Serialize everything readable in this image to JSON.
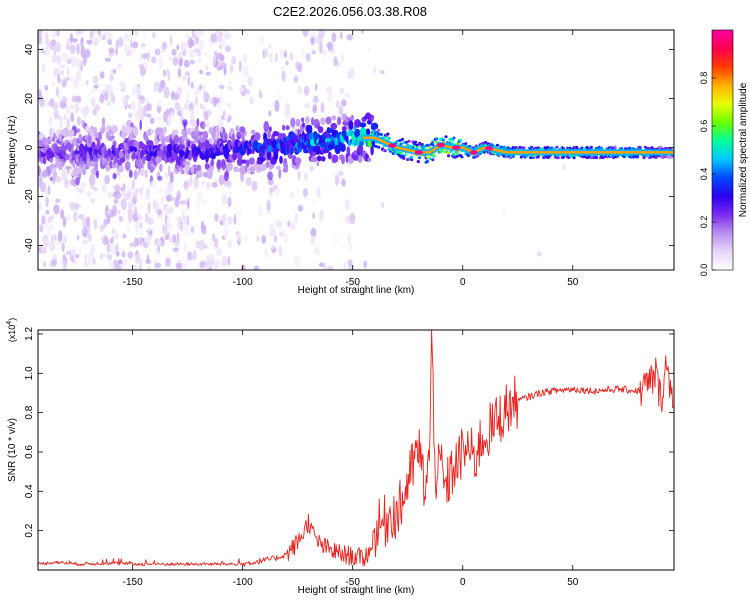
{
  "title": "C2E2.2026.056.03.38.R08",
  "colors": {
    "snr_line": "#e8221c",
    "axis": "#000000",
    "colormap": [
      "#ffffff",
      "#e6d6f7",
      "#b98ff0",
      "#7a2cf0",
      "#2a00f0",
      "#0048ff",
      "#00c8ff",
      "#00ff9a",
      "#6cff00",
      "#e8ff00",
      "#ffb000",
      "#ff3c00",
      "#ff0050",
      "#ff00a0"
    ]
  },
  "chart_data": [
    {
      "type": "heatmap",
      "title": "C2E2.2026.056.03.38.R08",
      "xlabel": "Height of straight line (km)",
      "ylabel": "Frequency (Hz)",
      "xlim": [
        -193,
        96
      ],
      "ylim": [
        -50,
        48
      ],
      "xticks": [
        -150,
        -100,
        -50,
        0,
        50
      ],
      "yticks": [
        -40,
        -20,
        0,
        20,
        40
      ],
      "colorbar": {
        "label": "Normalized spectral amplitude",
        "range": [
          0.0,
          1.0
        ],
        "ticks": [
          "0.0",
          "0.2",
          "0.4",
          "0.6",
          "0.8"
        ],
        "tick_values": [
          0.0,
          0.2,
          0.4,
          0.6,
          0.8
        ]
      },
      "ridge": {
        "x": [
          -193,
          -160,
          -140,
          -105,
          -80,
          -60,
          -50,
          -45,
          -40,
          -30,
          -20,
          -15,
          -10,
          -5,
          0,
          5,
          10,
          20,
          40,
          60,
          80,
          96
        ],
        "center_hz": [
          -3,
          -1,
          -2,
          -1,
          1,
          3,
          4,
          4,
          4,
          0,
          -2,
          -2,
          1,
          0,
          0,
          -2,
          0,
          -2,
          -2,
          -2,
          -2,
          -2
        ],
        "peak_amplitude": [
          0.25,
          0.3,
          0.3,
          0.35,
          0.45,
          0.5,
          0.55,
          0.6,
          0.65,
          0.8,
          0.85,
          0.9,
          0.95,
          0.97,
          0.95,
          0.9,
          0.9,
          0.85,
          0.8,
          0.8,
          0.75,
          0.4
        ]
      }
    },
    {
      "type": "line",
      "xlabel": "Height of straight line (km)",
      "ylabel": "SNR (10 * v/v)",
      "y_multiplier": "(x10",
      "y_multiplier_exp": "4",
      "y_multiplier_close": ")",
      "xlim": [
        -193,
        96
      ],
      "ylim": [
        0,
        1.22
      ],
      "xticks": [
        -150,
        -100,
        -50,
        0,
        50
      ],
      "yticks": [
        0.2,
        0.4,
        0.6,
        0.8,
        1.0,
        1.2
      ],
      "series": [
        {
          "name": "SNR",
          "x": [
            -193,
            -185,
            -175,
            -160,
            -150,
            -140,
            -125,
            -110,
            -100,
            -95,
            -90,
            -85,
            -80,
            -75,
            -72,
            -70,
            -68,
            -65,
            -60,
            -55,
            -50,
            -45,
            -42,
            -40,
            -38,
            -35,
            -32,
            -30,
            -27,
            -25,
            -22,
            -20,
            -17,
            -15,
            -14,
            -13,
            -12,
            -10,
            -8,
            -5,
            -2,
            0,
            3,
            5,
            8,
            10,
            15,
            20,
            25,
            30,
            35,
            40,
            50,
            60,
            70,
            80,
            85,
            88,
            90,
            92,
            94,
            96
          ],
          "y": [
            0.03,
            0.04,
            0.03,
            0.035,
            0.03,
            0.03,
            0.03,
            0.03,
            0.03,
            0.04,
            0.05,
            0.06,
            0.08,
            0.14,
            0.2,
            0.25,
            0.18,
            0.13,
            0.1,
            0.08,
            0.07,
            0.06,
            0.1,
            0.2,
            0.22,
            0.25,
            0.3,
            0.28,
            0.36,
            0.45,
            0.55,
            0.62,
            0.4,
            0.6,
            1.22,
            0.7,
            0.45,
            0.55,
            0.4,
            0.5,
            0.55,
            0.6,
            0.62,
            0.55,
            0.65,
            0.68,
            0.75,
            0.82,
            0.86,
            0.88,
            0.9,
            0.91,
            0.92,
            0.91,
            0.92,
            0.91,
            0.95,
            1.0,
            0.85,
            1.05,
            0.95,
            0.9
          ]
        }
      ]
    }
  ]
}
